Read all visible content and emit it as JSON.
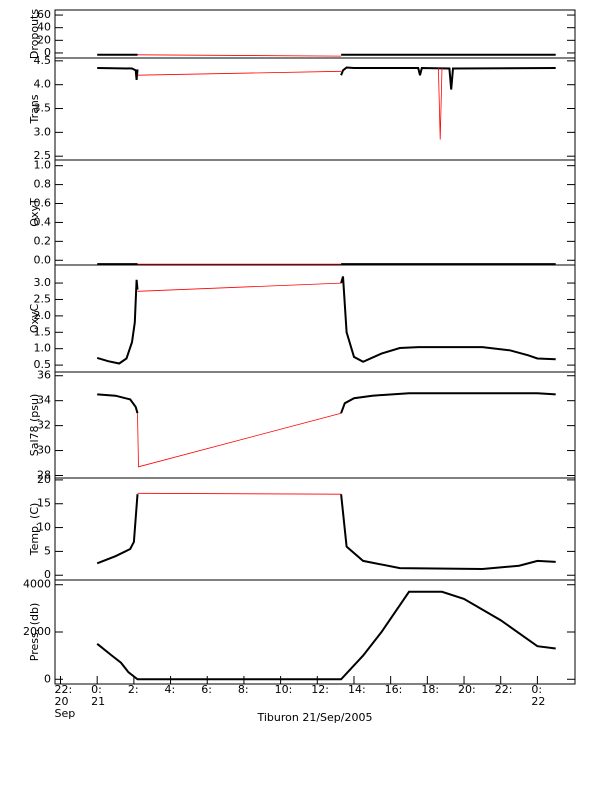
{
  "chart_data": [
    {
      "type": "line",
      "y_label": "Dropouts",
      "xlim": [
        -2.3,
        26.05
      ],
      "ylim": [
        -8,
        68
      ],
      "yticks": [
        0,
        20,
        40,
        60
      ],
      "series": [
        {
          "color": "#000000",
          "x": [
            0,
            2.2,
            7,
            13.3,
            25
          ],
          "values": [
            -3,
            -3,
            null,
            -3,
            -3
          ]
        },
        {
          "color": "#ff0000",
          "x": [
            2.2,
            13.3
          ],
          "values": [
            -3,
            -5
          ]
        }
      ]
    },
    {
      "type": "line",
      "y_label": "Trans",
      "xlim": [
        -2.3,
        26.05
      ],
      "ylim": [
        2.42,
        4.56
      ],
      "yticks": [
        2.5,
        {
          "value": 3,
          "label": "3.0"
        },
        3.5,
        {
          "value": 4,
          "label": "4.0"
        },
        4.5
      ],
      "series": [
        {
          "color": "#000000",
          "x": [
            0,
            1.9,
            2.1,
            2.15,
            2.2,
            7,
            13.3,
            13.4,
            13.6,
            14,
            17.5,
            17.6,
            17.7,
            19.2,
            19.3,
            19.4,
            25
          ],
          "values": [
            4.35,
            4.34,
            4.3,
            4.1,
            4.32,
            null,
            4.2,
            4.3,
            4.36,
            4.35,
            4.35,
            4.2,
            4.35,
            4.34,
            3.9,
            4.34,
            4.35
          ]
        },
        {
          "color": "#ff0000",
          "x": [
            2.2,
            13.3
          ],
          "values": [
            4.2,
            4.28
          ]
        },
        {
          "color": "#ff0000",
          "x": [
            18.6,
            18.7,
            18.8
          ],
          "values": [
            4.35,
            2.85,
            4.35
          ]
        }
      ]
    },
    {
      "type": "line",
      "y_label": "OxyT",
      "xlim": [
        -2.3,
        26.05
      ],
      "ylim": [
        -0.05,
        1.06
      ],
      "yticks": [
        {
          "value": 0,
          "label": "0.0"
        },
        0.2,
        0.4,
        0.6,
        0.8,
        {
          "value": 1,
          "label": "1.0"
        }
      ],
      "series": [
        {
          "color": "#000000",
          "x": [
            0,
            2.2,
            7,
            13.3,
            25
          ],
          "values": [
            -0.04,
            -0.04,
            null,
            -0.04,
            -0.04
          ]
        },
        {
          "color": "#ff0000",
          "x": [
            2.2,
            13.3
          ],
          "values": [
            -0.04,
            -0.04
          ]
        }
      ]
    },
    {
      "type": "line",
      "y_label": "OxyC",
      "xlim": [
        -2.3,
        26.05
      ],
      "ylim": [
        0.29,
        3.55
      ],
      "yticks": [
        0.5,
        {
          "value": 1,
          "label": "1.0"
        },
        1.5,
        {
          "value": 2,
          "label": "2.0"
        },
        2.5,
        {
          "value": 3,
          "label": "3.0"
        }
      ],
      "series": [
        {
          "color": "#000000",
          "x": [
            0,
            0.6,
            1.2,
            1.6,
            1.9,
            2.05,
            2.15,
            2.2,
            7,
            13.3,
            13.4,
            13.6,
            14,
            14.5,
            15.5,
            16.5,
            17.5,
            21,
            22.5,
            23.5,
            24,
            25
          ],
          "values": [
            0.72,
            0.62,
            0.55,
            0.7,
            1.2,
            1.8,
            3.1,
            2.8,
            null,
            3.0,
            3.2,
            1.5,
            0.75,
            0.6,
            0.85,
            1.02,
            1.05,
            1.05,
            0.95,
            0.8,
            0.7,
            0.68
          ]
        },
        {
          "color": "#ff0000",
          "x": [
            2.2,
            13.3
          ],
          "values": [
            2.75,
            3.0
          ]
        }
      ]
    },
    {
      "type": "line",
      "y_label": "Sal78 (psu)",
      "xlim": [
        -2.3,
        26.05
      ],
      "ylim": [
        27.8,
        36.3
      ],
      "yticks": [
        28,
        30,
        32,
        34,
        36
      ],
      "series": [
        {
          "color": "#000000",
          "x": [
            0,
            1,
            1.8,
            2.1,
            2.2,
            7,
            13.3,
            13.5,
            14,
            15,
            17,
            24,
            25
          ],
          "values": [
            34.5,
            34.4,
            34.1,
            33.5,
            33.0,
            null,
            33.0,
            33.8,
            34.2,
            34.4,
            34.6,
            34.6,
            34.5
          ]
        },
        {
          "color": "#ff0000",
          "x": [
            2.2,
            2.25,
            13.3
          ],
          "values": [
            33.0,
            28.7,
            33.0
          ]
        }
      ]
    },
    {
      "type": "line",
      "y_label": "Temp. (C)",
      "xlim": [
        -2.3,
        26.05
      ],
      "ylim": [
        -1,
        20.4
      ],
      "yticks": [
        0,
        5,
        10,
        15,
        20
      ],
      "series": [
        {
          "color": "#000000",
          "x": [
            0,
            1,
            1.8,
            2.0,
            2.2,
            7,
            13.3,
            13.6,
            14.5,
            16.5,
            21,
            23,
            24,
            25
          ],
          "values": [
            2.5,
            4,
            5.5,
            7,
            17,
            null,
            17,
            6,
            3,
            1.5,
            1.3,
            2,
            3,
            2.8
          ]
        },
        {
          "color": "#ff0000",
          "x": [
            2.2,
            13.3
          ],
          "values": [
            17.2,
            17
          ]
        }
      ]
    },
    {
      "type": "line",
      "y_label": "Press. (db)",
      "xlim": [
        -2.3,
        26.05
      ],
      "ylim": [
        -200,
        4200
      ],
      "yticks": [
        0,
        2000,
        4000
      ],
      "x_label": "Tiburon 21/Sep/2005",
      "xticks": [
        {
          "value": -2,
          "label": "22:",
          "date": [
            "20",
            "Sep"
          ]
        },
        {
          "value": 0,
          "label": "0:",
          "date": [
            "21"
          ]
        },
        {
          "value": 2,
          "label": "2:"
        },
        {
          "value": 4,
          "label": "4:"
        },
        {
          "value": 6,
          "label": "6:"
        },
        {
          "value": 8,
          "label": "8:"
        },
        {
          "value": 10,
          "label": "10:"
        },
        {
          "value": 12,
          "label": "12:"
        },
        {
          "value": 14,
          "label": "14:"
        },
        {
          "value": 16,
          "label": "16:"
        },
        {
          "value": 18,
          "label": "18:"
        },
        {
          "value": 20,
          "label": "20:"
        },
        {
          "value": 22,
          "label": "22:"
        },
        {
          "value": 24,
          "label": "0:",
          "date": [
            "22"
          ]
        }
      ],
      "series": [
        {
          "color": "#000000",
          "x": [
            0,
            0.8,
            1.3,
            1.7,
            2.2,
            13.3,
            14.5,
            15.5,
            17,
            18.8,
            20,
            22,
            24,
            25
          ],
          "values": [
            1500,
            1000,
            700,
            300,
            0,
            0,
            1000,
            2000,
            3700,
            3700,
            3400,
            2500,
            1400,
            1300
          ]
        }
      ]
    }
  ]
}
